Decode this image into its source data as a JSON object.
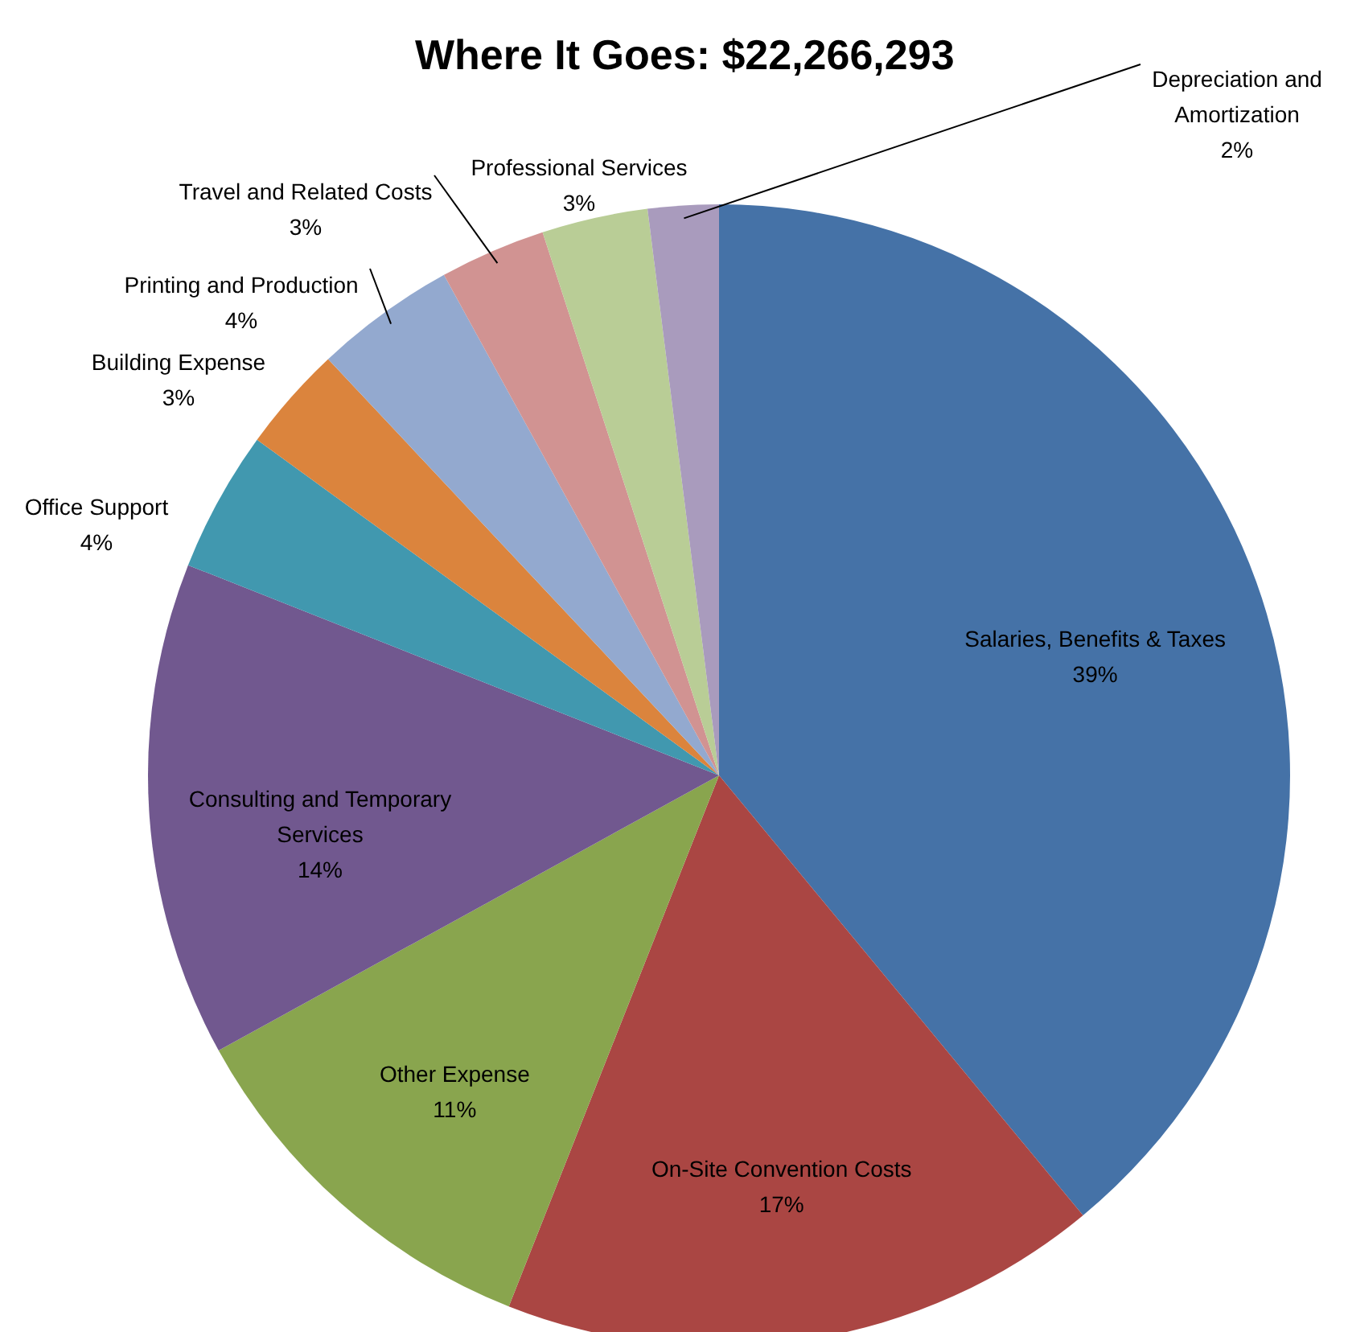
{
  "chart_data": {
    "type": "pie",
    "title": "Where It Goes: $22,266,293",
    "categories": [
      "Salaries, Benefits & Taxes",
      "On-Site Convention Costs",
      "Other Expense",
      "Consulting and Temporary Services",
      "Office Support",
      "Building Expense",
      "Printing and Production",
      "Travel and Related Costs",
      "Professional Services",
      "Depreciation and Amortization"
    ],
    "values": [
      39,
      17,
      11,
      14,
      4,
      3,
      4,
      3,
      3,
      2
    ],
    "value_labels": [
      "39%",
      "17%",
      "11%",
      "14%",
      "4%",
      "3%",
      "4%",
      "3%",
      "3%",
      "2%"
    ],
    "colors": [
      "#4572a7",
      "#aa4643",
      "#89a54e",
      "#71588f",
      "#4198af",
      "#db843d",
      "#93a9cf",
      "#d19392",
      "#b9cd96",
      "#a99bbd"
    ],
    "legend": false
  }
}
